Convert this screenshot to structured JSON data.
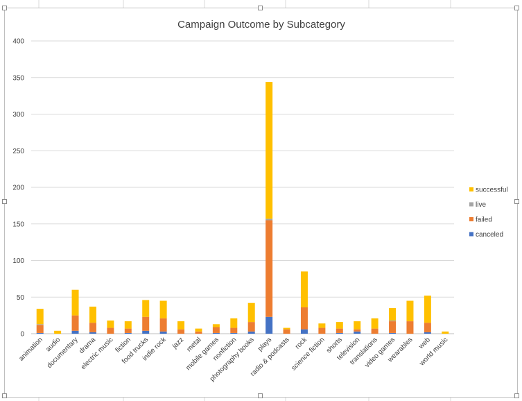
{
  "chart_data": {
    "type": "bar",
    "stacked": true,
    "title": "Campaign Outcome by Subcategory",
    "xlabel": "",
    "ylabel": "",
    "ylim": [
      0,
      400
    ],
    "yticks": [
      0,
      50,
      100,
      150,
      200,
      250,
      300,
      350,
      400
    ],
    "grid": true,
    "legend_position": "right",
    "categories": [
      "animation",
      "audio",
      "documentary",
      "drama",
      "electric music",
      "fiction",
      "food trucks",
      "indie rock",
      "jazz",
      "metal",
      "mobile games",
      "nonfiction",
      "photography books",
      "plays",
      "radio & podcasts",
      "rock",
      "science fiction",
      "shorts",
      "television",
      "translations",
      "video games",
      "wearables",
      "web",
      "world music"
    ],
    "series": [
      {
        "name": "canceled",
        "color": "#4472c4",
        "values": [
          1,
          0,
          4,
          2,
          0,
          1,
          4,
          3,
          0,
          0,
          1,
          1,
          3,
          23,
          0,
          6,
          0,
          1,
          3,
          0,
          1,
          0,
          2,
          0
        ]
      },
      {
        "name": "failed",
        "color": "#ed7d31",
        "values": [
          11,
          0,
          21,
          13,
          8,
          6,
          19,
          18,
          6,
          3,
          8,
          7,
          13,
          132,
          6,
          30,
          8,
          6,
          3,
          7,
          16,
          17,
          13,
          0
        ]
      },
      {
        "name": "live",
        "color": "#a5a5a5",
        "values": [
          1,
          0,
          0,
          0,
          0,
          0,
          0,
          0,
          0,
          0,
          0,
          0,
          0,
          2,
          0,
          0,
          0,
          0,
          0,
          0,
          1,
          0,
          0,
          0
        ]
      },
      {
        "name": "successful",
        "color": "#ffc000",
        "values": [
          21,
          4,
          35,
          22,
          10,
          10,
          23,
          24,
          11,
          4,
          4,
          13,
          26,
          187,
          2,
          49,
          6,
          9,
          11,
          14,
          17,
          28,
          37,
          3
        ]
      }
    ]
  }
}
